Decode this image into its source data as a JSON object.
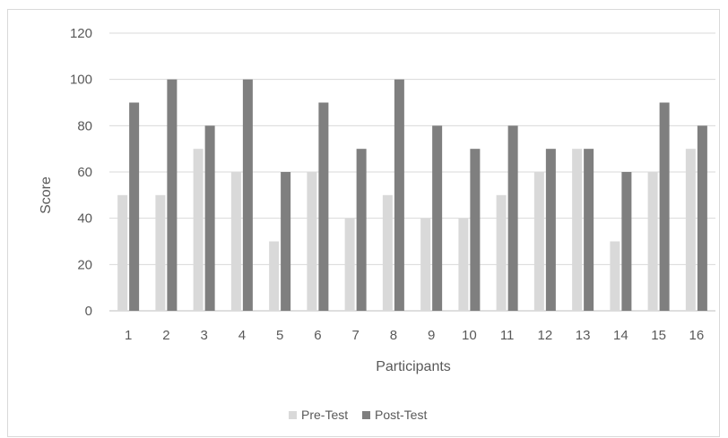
{
  "chart_data": {
    "type": "bar",
    "title": "",
    "xlabel": "Participants",
    "ylabel": "Score",
    "ylim": [
      0,
      120
    ],
    "yticks": [
      0,
      20,
      40,
      60,
      80,
      100,
      120
    ],
    "grid": true,
    "legend_position": "bottom",
    "categories": [
      "1",
      "2",
      "3",
      "4",
      "5",
      "6",
      "7",
      "8",
      "9",
      "10",
      "11",
      "12",
      "13",
      "14",
      "15",
      "16"
    ],
    "series": [
      {
        "name": "Pre-Test",
        "color": "#d9d9d9",
        "values": [
          50,
          50,
          70,
          60,
          30,
          60,
          40,
          50,
          40,
          40,
          50,
          60,
          70,
          30,
          60,
          70
        ]
      },
      {
        "name": "Post-Test",
        "color": "#7f7f7f",
        "values": [
          90,
          100,
          80,
          100,
          60,
          90,
          70,
          100,
          80,
          70,
          80,
          70,
          70,
          60,
          90,
          80
        ]
      }
    ]
  }
}
